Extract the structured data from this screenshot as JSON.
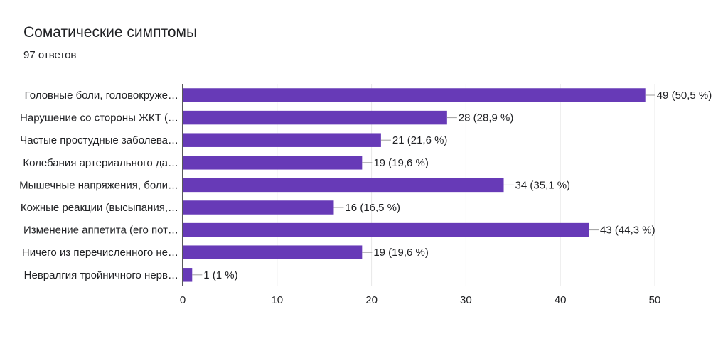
{
  "title": "Соматические симптомы",
  "response_count": "97 ответов",
  "colors": {
    "bar": "#673ab7",
    "grid": "#e8e8e8",
    "axis": "#202124",
    "leader": "#9e9e9e"
  },
  "chart_data": {
    "type": "bar",
    "orientation": "horizontal",
    "categories": [
      "Головные боли, головокруже…",
      "Нарушение со стороны ЖКТ (…",
      "Частые простудные заболева…",
      "Колебания артериального да…",
      "Мышечные напряжения, боли…",
      "Кожные реакции (высыпания,…",
      "Изменение аппетита (его пот…",
      "Ничего из перечисленного не…",
      "Невралгия тройничного нерв…"
    ],
    "values": [
      49,
      28,
      21,
      19,
      34,
      16,
      43,
      19,
      1
    ],
    "value_labels": [
      "49 (50,5 %)",
      "28 (28,9 %)",
      "21 (21,6 %)",
      "19 (19,6 %)",
      "34 (35,1 %)",
      "16 (16,5 %)",
      "43 (44,3 %)",
      "19 (19,6 %)",
      "1 (1 %)"
    ],
    "xticks": [
      "0",
      "10",
      "20",
      "30",
      "40",
      "50"
    ],
    "xlim": [
      0,
      50
    ],
    "grid": true
  }
}
